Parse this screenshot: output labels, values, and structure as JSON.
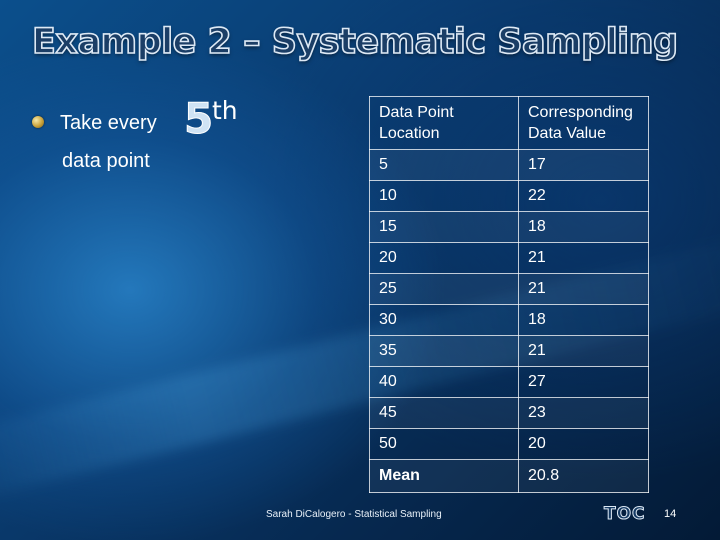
{
  "slide": {
    "title": "Example 2 – Systematic Sampling",
    "bullet": {
      "line1": "Take every",
      "ordinal_number": "5",
      "ordinal_suffix": "th",
      "line2": "data point"
    },
    "table": {
      "headers": [
        "Data Point Location",
        "Corresponding Data Value"
      ],
      "rows": [
        [
          "5",
          "17"
        ],
        [
          "10",
          "22"
        ],
        [
          "15",
          "18"
        ],
        [
          "20",
          "21"
        ],
        [
          "25",
          "21"
        ],
        [
          "30",
          "18"
        ],
        [
          "35",
          "21"
        ],
        [
          "40",
          "27"
        ],
        [
          "45",
          "23"
        ],
        [
          "50",
          "20"
        ]
      ],
      "mean_label": "Mean",
      "mean_value": "20.8"
    },
    "footer": {
      "author": "Sarah DiCalogero - Statistical Sampling",
      "toc_label": "TOC",
      "page_number": "14"
    }
  }
}
